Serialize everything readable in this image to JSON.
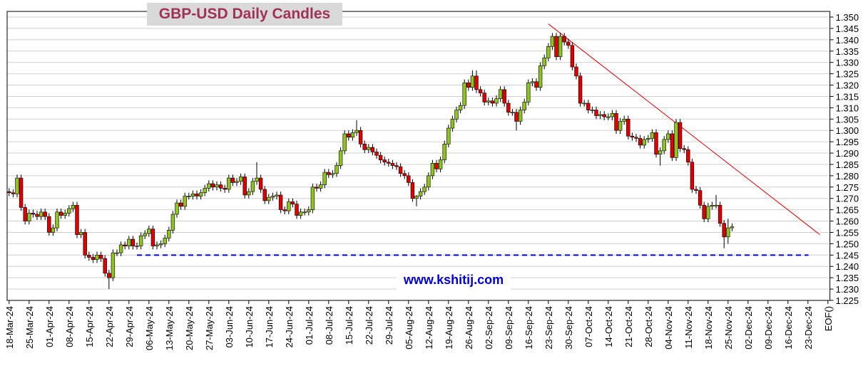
{
  "chart_data": {
    "type": "candlestick",
    "title": "GBP-USD Daily Candles",
    "watermark": "www.kshitij.com",
    "up_color": "#8fc31f",
    "down_color": "#e00000",
    "grid": true,
    "ylim": [
      1.225,
      1.3525
    ],
    "yticks": [
      1.225,
      {
        "value": 1.23,
        "label": "1.230"
      },
      1.235,
      {
        "value": 1.24,
        "label": "1.240"
      },
      1.245,
      {
        "value": 1.25,
        "label": "1.250"
      },
      1.255,
      {
        "value": 1.26,
        "label": "1.260"
      },
      1.265,
      {
        "value": 1.27,
        "label": "1.270"
      },
      1.275,
      {
        "value": 1.28,
        "label": "1.280"
      },
      1.285,
      {
        "value": 1.29,
        "label": "1.290"
      },
      1.295,
      {
        "value": 1.3,
        "label": "1.300"
      },
      1.305,
      {
        "value": 1.31,
        "label": "1.310"
      },
      1.315,
      {
        "value": 1.32,
        "label": "1.320"
      },
      1.325,
      {
        "value": 1.33,
        "label": "1.330"
      },
      1.335,
      {
        "value": 1.34,
        "label": "1.340"
      },
      1.345,
      {
        "value": 1.35,
        "label": "1.350"
      }
    ],
    "support_level": {
      "value": 1.245,
      "start": 32,
      "color": "#0000dd"
    },
    "trendline": {
      "x": [
        135,
        203
      ],
      "y": [
        1.347,
        1.254
      ],
      "color": "#e00000"
    },
    "categories": [
      "18-Mar-24",
      null,
      null,
      null,
      null,
      "25-Mar-24",
      null,
      null,
      null,
      null,
      "01-Apr-24",
      null,
      null,
      null,
      null,
      "08-Apr-24",
      null,
      null,
      null,
      null,
      "15-Apr-24",
      null,
      null,
      null,
      null,
      "22-Apr-24",
      null,
      null,
      null,
      null,
      "29-Apr-24",
      null,
      null,
      null,
      null,
      "06-May-24",
      null,
      null,
      null,
      null,
      "13-May-24",
      null,
      null,
      null,
      null,
      "20-May-24",
      null,
      null,
      null,
      null,
      "27-May-24",
      null,
      null,
      null,
      null,
      "03-Jun-24",
      null,
      null,
      null,
      null,
      "10-Jun-24",
      null,
      null,
      null,
      null,
      "17-Jun-24",
      null,
      null,
      null,
      null,
      "24-Jun-24",
      null,
      null,
      null,
      null,
      "01-Jul-24",
      null,
      null,
      null,
      null,
      "08-Jul-24",
      null,
      null,
      null,
      null,
      "15-Jul-24",
      null,
      null,
      null,
      null,
      "22-Jul-24",
      null,
      null,
      null,
      null,
      "29-Jul-24",
      null,
      null,
      null,
      null,
      "05-Aug-24",
      null,
      null,
      null,
      null,
      "12-Aug-24",
      null,
      null,
      null,
      null,
      "19-Aug-24",
      null,
      null,
      null,
      null,
      "26-Aug-24",
      null,
      null,
      null,
      null,
      "02-Sep-24",
      null,
      null,
      null,
      null,
      "09-Sep-24",
      null,
      null,
      null,
      null,
      "16-Sep-24",
      null,
      null,
      null,
      null,
      "23-Sep-24",
      null,
      null,
      null,
      null,
      "30-Sep-24",
      null,
      null,
      null,
      null,
      "07-Oct-24",
      null,
      null,
      null,
      null,
      "14-Oct-24",
      null,
      null,
      null,
      null,
      "21-Oct-24",
      null,
      null,
      null,
      null,
      "28-Oct-24",
      null,
      null,
      null,
      null,
      "04-Nov-24",
      null,
      null,
      null,
      null,
      "11-Nov-24",
      null,
      null,
      null,
      null,
      "18-Nov-24",
      null,
      null,
      null,
      null,
      "25-Nov-24",
      null,
      null,
      null,
      null,
      "02-Dec-24",
      null,
      null,
      null,
      null,
      "09-Dec-24",
      null,
      null,
      null,
      null,
      "16-Dec-24",
      null,
      null,
      null,
      null,
      "23-Dec-24",
      null,
      null,
      null,
      null,
      "EOF()"
    ],
    "open": [
      1.273,
      1.2725,
      1.272,
      1.279,
      1.266,
      1.26,
      1.2635,
      1.263,
      1.262,
      1.264,
      1.262,
      1.255,
      1.257,
      1.264,
      1.2625,
      1.2635,
      1.2655,
      1.267,
      1.254,
      1.255,
      1.245,
      1.244,
      1.243,
      1.245,
      1.2435,
      1.237,
      1.235,
      1.246,
      1.246,
      1.2495,
      1.249,
      1.252,
      1.249,
      1.249,
      1.2535,
      1.2545,
      1.2565,
      1.249,
      1.2495,
      1.25,
      1.2525,
      1.256,
      1.263,
      1.268,
      1.2665,
      1.271,
      1.271,
      1.272,
      1.271,
      1.2725,
      1.2745,
      1.2765,
      1.275,
      1.276,
      1.2745,
      1.274,
      1.279,
      1.277,
      1.2775,
      1.2795,
      1.2715,
      1.273,
      1.2775,
      1.279,
      1.274,
      1.269,
      1.2705,
      1.271,
      1.2715,
      1.265,
      1.2645,
      1.2685,
      1.2675,
      1.2625,
      1.264,
      1.264,
      1.265,
      1.275,
      1.2745,
      1.276,
      1.2815,
      1.2805,
      1.281,
      1.2845,
      1.291,
      1.2985,
      1.297,
      1.299,
      1.3,
      1.294,
      1.2915,
      1.2925,
      1.2905,
      1.289,
      1.287,
      1.286,
      1.2855,
      1.2845,
      1.284,
      1.281,
      1.28,
      1.277,
      1.27,
      1.271,
      1.273,
      1.275,
      1.28,
      1.2855,
      1.283,
      1.287,
      1.294,
      1.301,
      1.305,
      1.309,
      1.311,
      1.321,
      1.319,
      1.324,
      1.318,
      1.3165,
      1.3125,
      1.313,
      1.312,
      1.314,
      1.318,
      1.312,
      1.308,
      1.308,
      1.304,
      1.309,
      1.3125,
      1.321,
      1.3215,
      1.319,
      1.3285,
      1.332,
      1.337,
      1.3415,
      1.3325,
      1.3415,
      1.339,
      1.3375,
      1.328,
      1.324,
      1.312,
      1.312,
      1.309,
      1.309,
      1.3065,
      1.307,
      1.306,
      1.306,
      1.3075,
      1.3,
      1.304,
      1.305,
      1.2975,
      1.297,
      1.2965,
      1.2935,
      1.296,
      1.2965,
      1.299,
      1.2895,
      1.291,
      1.296,
      1.2985,
      1.288,
      1.3035,
      1.292,
      1.2915,
      1.286,
      1.274,
      1.2735,
      1.267,
      1.261,
      1.2665,
      1.267,
      1.267,
      1.259,
      1.253,
      1.257,
      null,
      null,
      null,
      null,
      null,
      null,
      null,
      null,
      null,
      null,
      null,
      null,
      null,
      null,
      null,
      null,
      null,
      null,
      null,
      null,
      null,
      null,
      null,
      null
    ],
    "high": [
      1.2745,
      1.274,
      1.2805,
      1.2805,
      1.2675,
      1.265,
      1.265,
      1.2645,
      1.2655,
      1.2655,
      1.2635,
      1.2585,
      1.2655,
      1.2655,
      1.265,
      1.267,
      1.2685,
      1.2685,
      1.2565,
      1.2565,
      1.2465,
      1.2455,
      1.2465,
      1.2465,
      1.245,
      1.2385,
      1.2475,
      1.2475,
      1.251,
      1.251,
      1.2535,
      1.2535,
      1.2505,
      1.255,
      1.256,
      1.258,
      1.258,
      1.251,
      1.2515,
      1.254,
      1.2575,
      1.2645,
      1.2695,
      1.2695,
      1.2725,
      1.2725,
      1.2735,
      1.2735,
      1.274,
      1.276,
      1.278,
      1.278,
      1.2775,
      1.2775,
      1.276,
      1.2805,
      1.2805,
      1.279,
      1.281,
      1.281,
      1.2745,
      1.279,
      1.286,
      1.2805,
      1.2755,
      1.272,
      1.2725,
      1.273,
      1.273,
      1.2665,
      1.27,
      1.27,
      1.269,
      1.2655,
      1.2655,
      1.2665,
      1.2765,
      1.2765,
      1.2775,
      1.283,
      1.283,
      1.2825,
      1.286,
      1.2925,
      1.3,
      1.3,
      1.3005,
      1.3045,
      1.3015,
      1.2955,
      1.294,
      1.294,
      1.292,
      1.2905,
      1.2885,
      1.2875,
      1.287,
      1.286,
      1.2855,
      1.2825,
      1.2815,
      1.2785,
      1.2715,
      1.2745,
      1.2765,
      1.2815,
      1.287,
      1.287,
      1.2885,
      1.2955,
      1.3025,
      1.3065,
      1.3105,
      1.3125,
      1.3225,
      1.3225,
      1.3265,
      1.3265,
      1.3195,
      1.318,
      1.3145,
      1.3145,
      1.3155,
      1.3195,
      1.3195,
      1.3135,
      1.3095,
      1.3095,
      1.3105,
      1.314,
      1.3225,
      1.323,
      1.323,
      1.33,
      1.3335,
      1.3385,
      1.343,
      1.343,
      1.343,
      1.343,
      1.3405,
      1.339,
      1.3295,
      1.3255,
      1.3135,
      1.3135,
      1.3105,
      1.3105,
      1.3085,
      1.3085,
      1.3075,
      1.309,
      1.309,
      1.3055,
      1.3065,
      1.3065,
      1.299,
      1.2985,
      1.298,
      1.2975,
      1.298,
      1.3005,
      1.3005,
      1.2925,
      1.2975,
      1.3,
      1.3,
      1.305,
      1.305,
      1.2935,
      1.293,
      1.2875,
      1.2755,
      1.275,
      1.2685,
      1.268,
      1.2685,
      1.2715,
      1.2685,
      1.2605,
      1.261,
      1.259,
      null,
      null,
      null,
      null,
      null,
      null,
      null,
      null,
      null,
      null,
      null,
      null,
      null,
      null,
      null,
      null,
      null,
      null,
      null,
      null,
      null,
      null,
      null,
      null
    ],
    "low": [
      1.271,
      1.2705,
      1.2705,
      1.2645,
      1.2585,
      1.2585,
      1.2615,
      1.2605,
      1.2605,
      1.2605,
      1.2535,
      1.2535,
      1.2555,
      1.261,
      1.261,
      1.262,
      1.264,
      1.2525,
      1.2525,
      1.2435,
      1.2425,
      1.2415,
      1.2415,
      1.242,
      1.2355,
      1.23,
      1.2335,
      1.2445,
      1.2445,
      1.2475,
      1.2475,
      1.2475,
      1.2475,
      1.2475,
      1.252,
      1.253,
      1.2475,
      1.2475,
      1.248,
      1.2485,
      1.251,
      1.2545,
      1.2615,
      1.265,
      1.265,
      1.2695,
      1.2695,
      1.2695,
      1.2695,
      1.271,
      1.273,
      1.2735,
      1.2735,
      1.273,
      1.2725,
      1.2725,
      1.2755,
      1.2755,
      1.276,
      1.27,
      1.27,
      1.2715,
      1.276,
      1.2725,
      1.2675,
      1.2675,
      1.269,
      1.2695,
      1.2635,
      1.263,
      1.263,
      1.266,
      1.261,
      1.261,
      1.2625,
      1.2625,
      1.2635,
      1.273,
      1.273,
      1.2745,
      1.279,
      1.279,
      1.2795,
      1.283,
      1.2895,
      1.2955,
      1.2955,
      1.2975,
      1.2925,
      1.29,
      1.29,
      1.289,
      1.2875,
      1.2855,
      1.2845,
      1.284,
      1.283,
      1.2825,
      1.2795,
      1.2785,
      1.2755,
      1.2685,
      1.2665,
      1.2695,
      1.2715,
      1.2735,
      1.2785,
      1.2815,
      1.2815,
      1.2855,
      1.2925,
      1.2995,
      1.3035,
      1.3075,
      1.3095,
      1.3175,
      1.3175,
      1.3165,
      1.315,
      1.311,
      1.311,
      1.3105,
      1.3105,
      1.3125,
      1.3105,
      1.3065,
      1.3065,
      1.3,
      1.3025,
      1.3075,
      1.311,
      1.3195,
      1.3175,
      1.3175,
      1.327,
      1.3305,
      1.3355,
      1.331,
      1.331,
      1.3375,
      1.336,
      1.3265,
      1.3225,
      1.3105,
      1.3105,
      1.3075,
      1.3075,
      1.305,
      1.305,
      1.3045,
      1.3045,
      1.3045,
      1.2985,
      1.2985,
      1.3025,
      1.296,
      1.2955,
      1.295,
      1.292,
      1.292,
      1.2945,
      1.295,
      1.288,
      1.2845,
      1.2895,
      1.2945,
      1.2865,
      1.2865,
      1.2905,
      1.29,
      1.2845,
      1.2725,
      1.272,
      1.2655,
      1.2595,
      1.2595,
      1.265,
      1.2655,
      1.2575,
      1.248,
      1.25,
      1.2555,
      null,
      null,
      null,
      null,
      null,
      null,
      null,
      null,
      null,
      null,
      null,
      null,
      null,
      null,
      null,
      null,
      null,
      null,
      null,
      null,
      null,
      null,
      null,
      null
    ],
    "close": [
      1.2725,
      1.272,
      1.279,
      1.266,
      1.26,
      1.2635,
      1.263,
      1.262,
      1.264,
      1.262,
      1.255,
      1.257,
      1.264,
      1.2625,
      1.2635,
      1.2655,
      1.267,
      1.254,
      1.255,
      1.245,
      1.244,
      1.243,
      1.245,
      1.2435,
      1.237,
      1.235,
      1.246,
      1.246,
      1.2495,
      1.249,
      1.252,
      1.249,
      1.249,
      1.2535,
      1.2545,
      1.2565,
      1.249,
      1.2495,
      1.25,
      1.2525,
      1.256,
      1.263,
      1.268,
      1.2665,
      1.271,
      1.271,
      1.272,
      1.271,
      1.2725,
      1.2745,
      1.2765,
      1.275,
      1.276,
      1.2745,
      1.274,
      1.279,
      1.277,
      1.2775,
      1.2795,
      1.2715,
      1.273,
      1.2775,
      1.279,
      1.274,
      1.269,
      1.2705,
      1.271,
      1.2715,
      1.265,
      1.2645,
      1.2685,
      1.2675,
      1.2625,
      1.264,
      1.264,
      1.265,
      1.275,
      1.2745,
      1.276,
      1.2815,
      1.2805,
      1.281,
      1.2845,
      1.291,
      1.2985,
      1.297,
      1.299,
      1.3,
      1.294,
      1.2915,
      1.2925,
      1.2905,
      1.289,
      1.287,
      1.286,
      1.2855,
      1.2845,
      1.284,
      1.281,
      1.28,
      1.277,
      1.27,
      1.271,
      1.273,
      1.275,
      1.28,
      1.2855,
      1.283,
      1.287,
      1.294,
      1.301,
      1.305,
      1.309,
      1.311,
      1.321,
      1.319,
      1.324,
      1.318,
      1.3165,
      1.3125,
      1.313,
      1.312,
      1.314,
      1.318,
      1.312,
      1.308,
      1.308,
      1.304,
      1.309,
      1.3125,
      1.321,
      1.3215,
      1.319,
      1.3285,
      1.332,
      1.337,
      1.3415,
      1.3325,
      1.3415,
      1.339,
      1.3375,
      1.328,
      1.324,
      1.312,
      1.312,
      1.309,
      1.309,
      1.3065,
      1.307,
      1.306,
      1.306,
      1.3075,
      1.3,
      1.304,
      1.305,
      1.2975,
      1.297,
      1.2965,
      1.2935,
      1.296,
      1.2965,
      1.299,
      1.2895,
      1.291,
      1.296,
      1.2985,
      1.288,
      1.3035,
      1.292,
      1.2915,
      1.286,
      1.274,
      1.2735,
      1.267,
      1.261,
      1.2665,
      1.267,
      1.267,
      1.259,
      1.253,
      1.257,
      1.2575,
      null,
      null,
      null,
      null,
      null,
      null,
      null,
      null,
      null,
      null,
      null,
      null,
      null,
      null,
      null,
      null,
      null,
      null,
      null,
      null,
      null,
      null,
      null,
      null
    ]
  }
}
